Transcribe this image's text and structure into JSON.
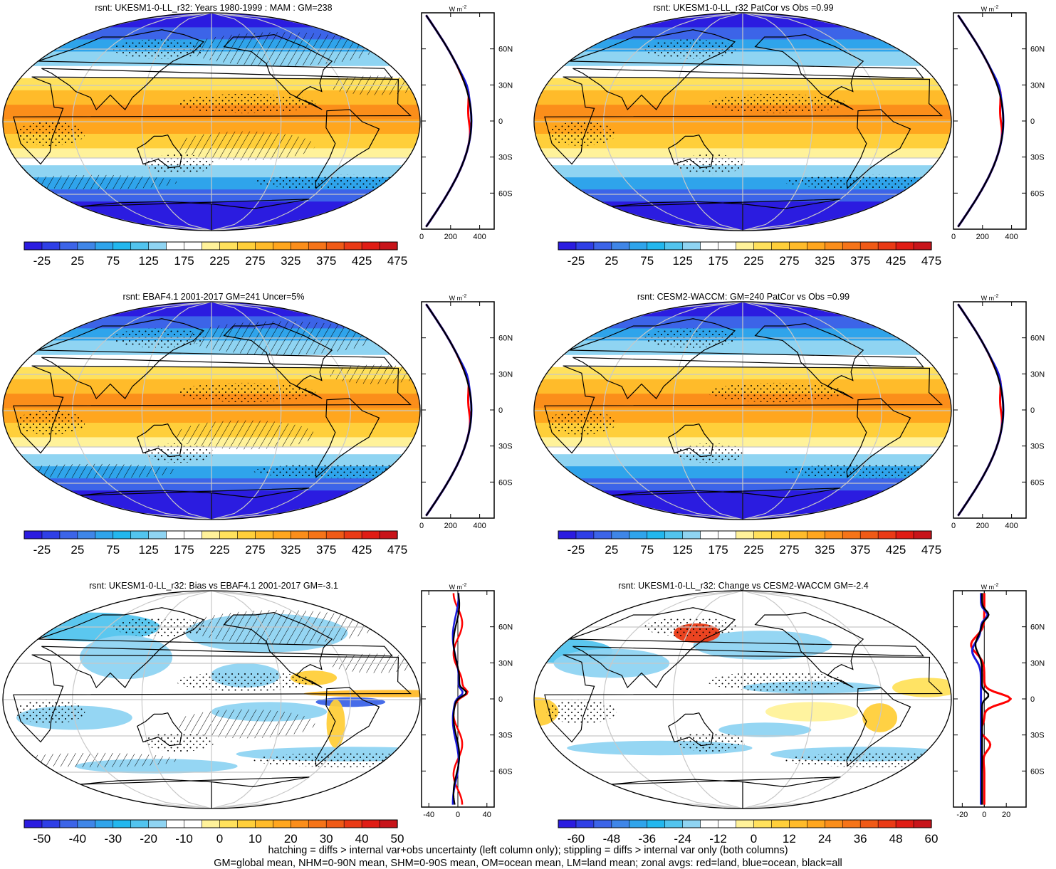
{
  "panels": [
    {
      "title": "rsnt: UKESM1-0-LL_r32: Years 1980-1999 : MAM : GM=238",
      "kind": "clim",
      "hatch": true,
      "col": 0,
      "row": 0
    },
    {
      "title": "rsnt: UKESM1-0-LL_r32 PatCor vs Obs =0.99",
      "kind": "clim",
      "hatch": false,
      "col": 1,
      "row": 0
    },
    {
      "title": "rsnt: EBAF4.1 2001-2017 GM=241 Uncer=5%",
      "kind": "clim",
      "hatch": true,
      "col": 0,
      "row": 1
    },
    {
      "title": "rsnt: CESM2-WACCM: GM=240 PatCor vs Obs =0.99",
      "kind": "clim",
      "hatch": false,
      "col": 1,
      "row": 1
    },
    {
      "title": "rsnt: UKESM1-0-LL_r32: Bias vs EBAF4.1 2001-2017 GM=-3.1",
      "kind": "bias",
      "hatch": true,
      "col": 0,
      "row": 2
    },
    {
      "title": "rsnt: UKESM1-0-LL_r32: Change vs CESM2-WACCM GM=-2.4",
      "kind": "change",
      "hatch": false,
      "col": 1,
      "row": 2
    }
  ],
  "colorbars": {
    "clim": {
      "labels": [
        "-25",
        "25",
        "75",
        "125",
        "175",
        "225",
        "275",
        "325",
        "375",
        "425",
        "475"
      ],
      "colors": [
        "#2b1ce0",
        "#2f3fe6",
        "#3c64e8",
        "#3f86e8",
        "#2fa4eb",
        "#22b7ee",
        "#52c4ee",
        "#8fd4f2",
        "#ffffff",
        "#ffffff",
        "#fff29a",
        "#ffe15c",
        "#ffcf3a",
        "#ffbb2a",
        "#ffa61e",
        "#fb8e1a",
        "#f67418",
        "#f05a16",
        "#ea3a15",
        "#e01c14",
        "#c8141a"
      ]
    },
    "bias": {
      "labels": [
        "-50",
        "-40",
        "-30",
        "-20",
        "-10",
        "0",
        "10",
        "20",
        "30",
        "40",
        "50"
      ],
      "colors": [
        "#2b1ce0",
        "#2f3fe6",
        "#3c64e8",
        "#3f86e8",
        "#2fa4eb",
        "#22b7ee",
        "#52c4ee",
        "#8fd4f2",
        "#ffffff",
        "#ffffff",
        "#fff29a",
        "#ffe15c",
        "#ffcf3a",
        "#ffbb2a",
        "#ffa61e",
        "#fb8e1a",
        "#f67418",
        "#f05a16",
        "#ea3a15",
        "#e01c14",
        "#c8141a"
      ]
    },
    "change": {
      "labels": [
        "-60",
        "-48",
        "-36",
        "-24",
        "-12",
        "0",
        "12",
        "24",
        "36",
        "48",
        "60"
      ],
      "colors": [
        "#2b1ce0",
        "#2f3fe6",
        "#3c64e8",
        "#3f86e8",
        "#2fa4eb",
        "#22b7ee",
        "#52c4ee",
        "#8fd4f2",
        "#ffffff",
        "#ffffff",
        "#fff29a",
        "#ffe15c",
        "#ffcf3a",
        "#ffbb2a",
        "#ffa61e",
        "#fb8e1a",
        "#f67418",
        "#f05a16",
        "#ea3a15",
        "#e01c14",
        "#c8141a"
      ]
    }
  },
  "zonal": {
    "unit": "W m",
    "unit_exp": "-2",
    "lat_labels": [
      "60N",
      "30N",
      "0",
      "30S",
      "60S"
    ],
    "clim_xticks": [
      "0",
      "200",
      "400"
    ],
    "bias_xticks": [
      "-40",
      "0",
      "40"
    ],
    "change_xticks": [
      "-20",
      "0",
      "20"
    ],
    "colors": {
      "land": "#ff0000",
      "ocean": "#1a1adc",
      "all": "#000000"
    }
  },
  "footer": {
    "line1": "hatching = diffs > internal var+obs uncertainty (left column only); stippling = diffs > internal var only (both columns)",
    "line2": "GM=global mean, NHM=0-90N mean, SHM=0-90S mean, OM=ocean mean, LM=land mean; zonal avgs: red=land, blue=ocean, black=all"
  }
}
